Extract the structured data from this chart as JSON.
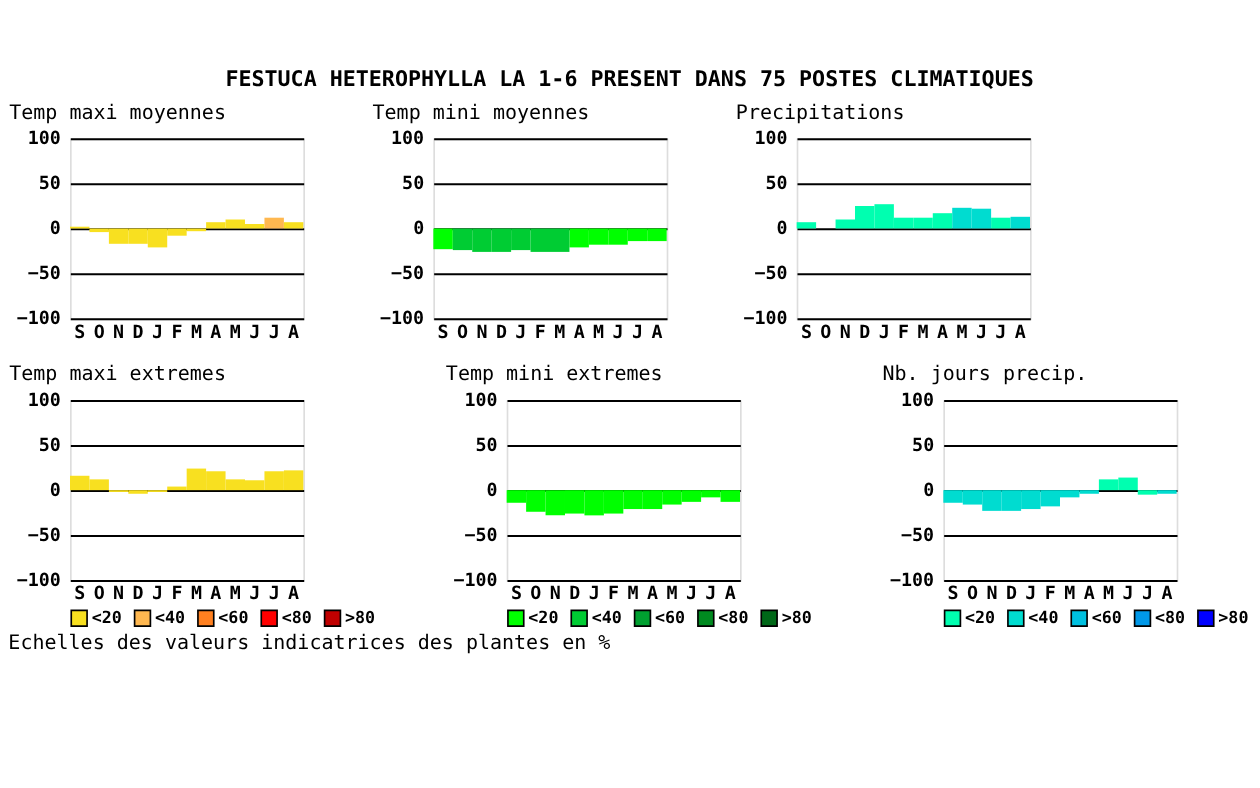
{
  "chart_data": [
    {
      "type": "bar",
      "title": "Temp maxi moyennes",
      "annotations": [
        "FESTUCA HETEROPHYLLA LA 1-6 PRESENT DANS  75 POSTES CLIMATIQUES"
      ],
      "categories": [
        "S",
        "O",
        "N",
        "D",
        "J",
        "F",
        "M",
        "A",
        "M",
        "J",
        "J",
        "A"
      ],
      "ylim": [
        -100,
        100
      ],
      "yticks": [
        -100,
        -50,
        0,
        50,
        100
      ],
      "grid": "y",
      "series": [
        {
          "color": "#f8e020",
          "values": [
            2,
            -4,
            -17,
            -17,
            -21,
            -8,
            -3,
            7,
            10,
            5,
            null,
            7
          ]
        },
        {
          "color": "#ffb850",
          "values": [
            null,
            null,
            null,
            null,
            null,
            null,
            null,
            null,
            null,
            null,
            12,
            null
          ]
        }
      ]
    },
    {
      "type": "bar",
      "title": "Temp mini moyennes",
      "categories": [
        "S",
        "O",
        "N",
        "D",
        "J",
        "F",
        "M",
        "A",
        "M",
        "J",
        "J",
        "A"
      ],
      "ylim": [
        -100,
        100
      ],
      "yticks": [
        -100,
        -50,
        0,
        50,
        100
      ],
      "grid": "y",
      "series": [
        {
          "color": "#00ff00",
          "values": [
            -23,
            null,
            null,
            null,
            null,
            null,
            null,
            -21,
            -18,
            -18,
            -14,
            -14
          ]
        },
        {
          "color": "#00cc33",
          "values": [
            null,
            -24,
            -26,
            -26,
            -24,
            -26,
            -26,
            null,
            null,
            null,
            null,
            null
          ]
        }
      ]
    },
    {
      "type": "bar",
      "title": "Precipitations",
      "categories": [
        "S",
        "O",
        "N",
        "D",
        "J",
        "F",
        "M",
        "A",
        "M",
        "J",
        "J",
        "A"
      ],
      "ylim": [
        -100,
        100
      ],
      "yticks": [
        -100,
        -50,
        0,
        50,
        100
      ],
      "grid": "y",
      "series": [
        {
          "color": "#00ffb0",
          "values": [
            7,
            null,
            10,
            25,
            27,
            12,
            12,
            17,
            null,
            null,
            12,
            null
          ]
        },
        {
          "color": "#00dcd0",
          "values": [
            null,
            null,
            null,
            null,
            null,
            null,
            null,
            null,
            23,
            22,
            null,
            13
          ]
        }
      ]
    },
    {
      "type": "bar",
      "title": "Temp maxi extremes",
      "categories": [
        "S",
        "O",
        "N",
        "D",
        "J",
        "F",
        "M",
        "A",
        "M",
        "J",
        "J",
        "A"
      ],
      "ylim": [
        -100,
        100
      ],
      "yticks": [
        -100,
        -50,
        0,
        50,
        100
      ],
      "grid": "y",
      "legend": "bottom",
      "series": [
        {
          "name": "<20",
          "color": "#f8e020",
          "values": [
            16,
            12,
            -2,
            -4,
            -2,
            4,
            24,
            21,
            12,
            11,
            21,
            22
          ]
        },
        {
          "name": "<40",
          "color": "#ffb850",
          "values": [
            null,
            null,
            null,
            null,
            null,
            null,
            null,
            null,
            null,
            null,
            null,
            null
          ]
        },
        {
          "name": "<60",
          "color": "#ff8020",
          "values": [
            null,
            null,
            null,
            null,
            null,
            null,
            null,
            null,
            null,
            null,
            null,
            null
          ]
        },
        {
          "name": "<80",
          "color": "#ff0000",
          "values": [
            null,
            null,
            null,
            null,
            null,
            null,
            null,
            null,
            null,
            null,
            null,
            null
          ]
        },
        {
          "name": ">80",
          "color": "#c00000",
          "values": [
            null,
            null,
            null,
            null,
            null,
            null,
            null,
            null,
            null,
            null,
            null,
            null
          ]
        }
      ]
    },
    {
      "type": "bar",
      "title": "Temp mini extremes",
      "annotations": [
        "Echelles des valeurs indicatrices des plantes en %"
      ],
      "categories": [
        "S",
        "O",
        "N",
        "D",
        "J",
        "F",
        "M",
        "A",
        "M",
        "J",
        "J",
        "A"
      ],
      "ylim": [
        -100,
        100
      ],
      "yticks": [
        -100,
        -50,
        0,
        50,
        100
      ],
      "grid": "y",
      "legend": "bottom",
      "series": [
        {
          "name": "<20",
          "color": "#00ff00",
          "values": [
            -14,
            -24,
            -28,
            -26,
            -28,
            -26,
            -21,
            -21,
            -16,
            -13,
            -8,
            -13
          ]
        },
        {
          "name": "<40",
          "color": "#00cc33",
          "values": [
            null,
            null,
            null,
            null,
            null,
            null,
            null,
            null,
            null,
            null,
            null,
            null
          ]
        },
        {
          "name": "<60",
          "color": "#00a030",
          "values": [
            null,
            null,
            null,
            null,
            null,
            null,
            null,
            null,
            null,
            null,
            null,
            null
          ]
        },
        {
          "name": "<80",
          "color": "#008a20",
          "values": [
            null,
            null,
            null,
            null,
            null,
            null,
            null,
            null,
            null,
            null,
            null,
            null
          ]
        },
        {
          "name": ">80",
          "color": "#006818",
          "values": [
            null,
            null,
            null,
            null,
            null,
            null,
            null,
            null,
            null,
            null,
            null,
            null
          ]
        }
      ]
    },
    {
      "type": "bar",
      "title": "Nb. jours precip.",
      "categories": [
        "S",
        "O",
        "N",
        "D",
        "J",
        "F",
        "M",
        "A",
        "M",
        "J",
        "J",
        "A"
      ],
      "ylim": [
        -100,
        100
      ],
      "yticks": [
        -100,
        -50,
        0,
        50,
        100
      ],
      "grid": "y",
      "legend": "bottom",
      "series": [
        {
          "name": "<20",
          "color": "#00ffb0",
          "values": [
            null,
            null,
            null,
            null,
            null,
            null,
            null,
            null,
            12,
            14,
            -5,
            null
          ]
        },
        {
          "name": "<40",
          "color": "#00dcd0",
          "values": [
            -14,
            -16,
            -23,
            -23,
            -21,
            -18,
            -8,
            -4,
            null,
            null,
            null,
            -4
          ]
        },
        {
          "name": "<60",
          "color": "#00c0e0",
          "values": [
            null,
            null,
            null,
            null,
            null,
            null,
            null,
            null,
            null,
            null,
            null,
            null
          ]
        },
        {
          "name": "<80",
          "color": "#0098e8",
          "values": [
            null,
            null,
            null,
            null,
            null,
            null,
            null,
            null,
            null,
            null,
            null,
            null
          ]
        },
        {
          "name": ">80",
          "color": "#0000ff",
          "values": [
            null,
            null,
            null,
            null,
            null,
            null,
            null,
            null,
            null,
            null,
            null,
            null
          ]
        }
      ]
    }
  ]
}
